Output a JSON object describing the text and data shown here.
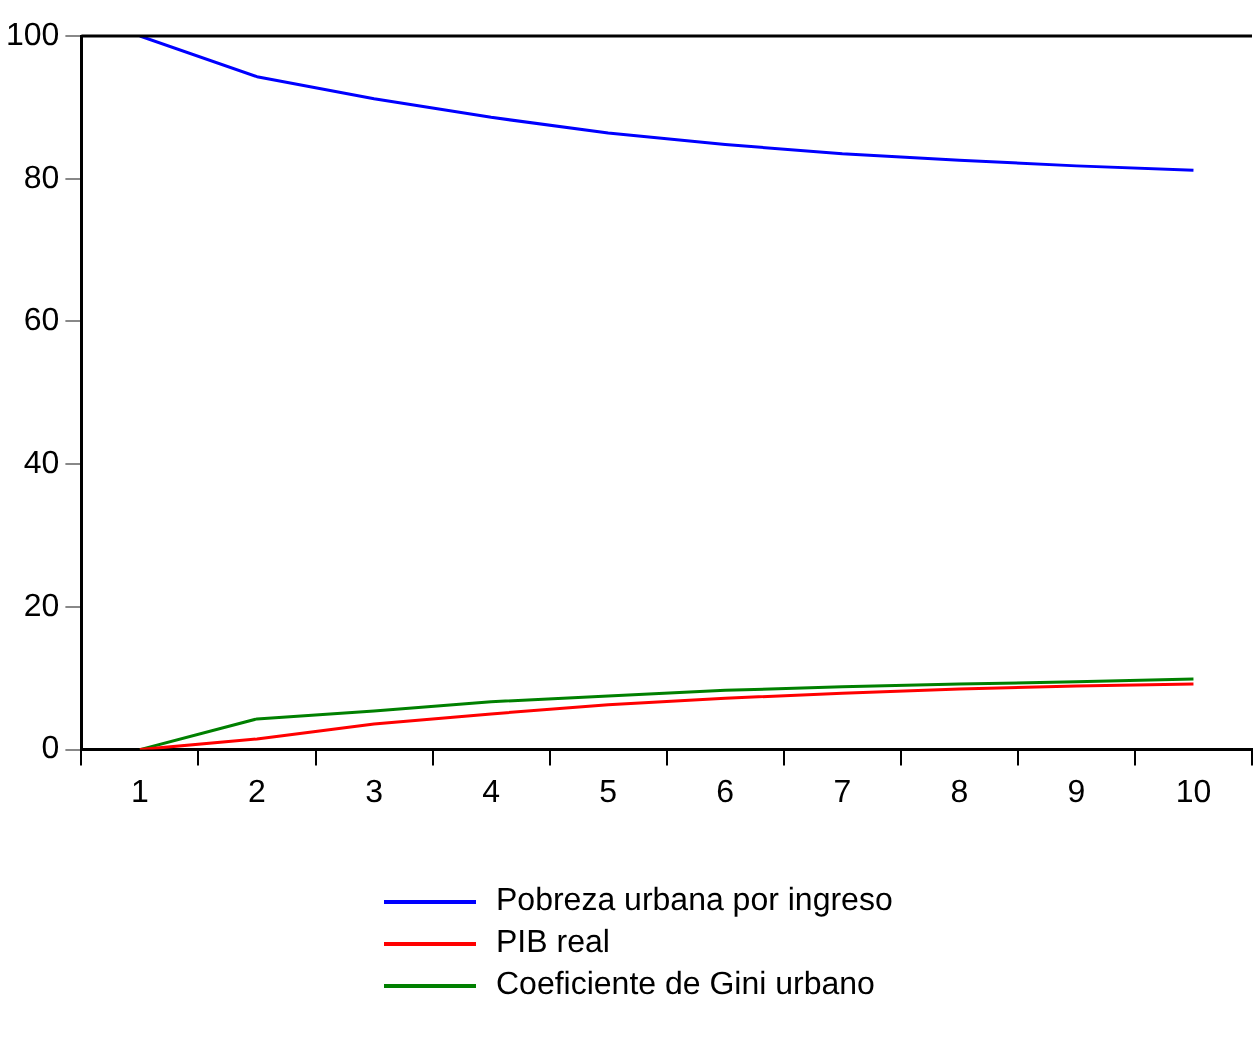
{
  "chart_data": {
    "type": "line",
    "categories": [
      "1",
      "2",
      "3",
      "4",
      "5",
      "6",
      "7",
      "8",
      "9",
      "10"
    ],
    "series": [
      {
        "name": "Pobreza urbana por ingreso",
        "color": "#0000ff",
        "values": [
          100,
          94.3,
          91.2,
          88.6,
          86.4,
          84.8,
          83.5,
          82.6,
          81.8,
          81.2
        ]
      },
      {
        "name": "PIB real",
        "color": "#ff0000",
        "values": [
          0,
          1.5,
          3.6,
          5.0,
          6.3,
          7.2,
          7.9,
          8.5,
          8.9,
          9.2
        ]
      },
      {
        "name": "Coeficiente de Gini urbano",
        "color": "#008000",
        "values": [
          0,
          4.3,
          5.4,
          6.7,
          7.5,
          8.3,
          8.8,
          9.2,
          9.5,
          9.9
        ]
      }
    ],
    "ylim": [
      0,
      100
    ],
    "yticks": [
      0,
      20,
      40,
      60,
      80,
      100
    ],
    "grid": false,
    "legend": "bottom",
    "marker": "none",
    "line_style": "solid"
  }
}
